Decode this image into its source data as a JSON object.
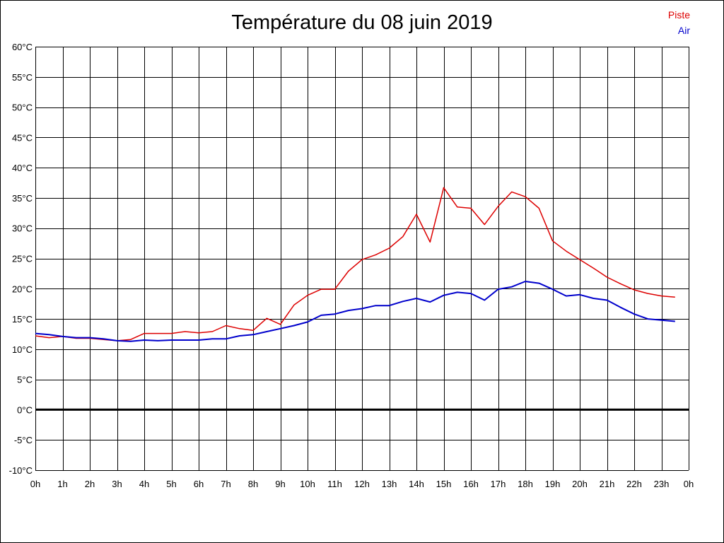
{
  "chart_data": {
    "type": "line",
    "title": "Température du 08 juin 2019",
    "xlabel": "",
    "ylabel": "",
    "x_tick_labels": [
      "0h",
      "1h",
      "2h",
      "3h",
      "4h",
      "5h",
      "6h",
      "7h",
      "8h",
      "9h",
      "10h",
      "11h",
      "12h",
      "13h",
      "14h",
      "15h",
      "16h",
      "17h",
      "18h",
      "19h",
      "20h",
      "21h",
      "22h",
      "23h",
      "0h"
    ],
    "y_tick_labels": [
      "60°C",
      "55°C",
      "50°C",
      "45°C",
      "40°C",
      "35°C",
      "30°C",
      "25°C",
      "20°C",
      "15°C",
      "10°C",
      "5°C",
      "0°C",
      "-5°C",
      "-10°C"
    ],
    "ylim": [
      -10,
      60
    ],
    "xlim": [
      0,
      24
    ],
    "grid": true,
    "legend_position": "top-right",
    "series": [
      {
        "name": "Piste",
        "color": "#dd0000",
        "x": [
          0,
          0.5,
          1,
          1.5,
          2,
          2.5,
          3,
          3.5,
          4,
          4.5,
          5,
          5.5,
          6,
          6.5,
          7,
          7.5,
          8,
          8.5,
          9,
          9.5,
          10,
          10.5,
          11,
          11.5,
          12,
          12.5,
          13,
          13.5,
          14,
          14.5,
          15,
          15.5,
          16,
          16.5,
          17,
          17.5,
          18,
          18.5,
          19,
          19.5,
          20,
          20.5,
          21,
          21.5,
          22,
          22.5,
          23,
          23.5
        ],
        "values": [
          12.2,
          11.9,
          12.1,
          11.8,
          11.8,
          11.6,
          11.4,
          11.6,
          12.6,
          12.6,
          12.6,
          12.9,
          12.7,
          12.9,
          13.9,
          13.4,
          13.1,
          15.1,
          14.1,
          17.3,
          18.9,
          19.9,
          19.9,
          22.9,
          24.8,
          25.6,
          26.7,
          28.6,
          32.3,
          27.7,
          36.7,
          33.5,
          33.3,
          30.6,
          33.6,
          36.0,
          35.2,
          33.3,
          27.9,
          26.2,
          24.8,
          23.4,
          21.9,
          20.8,
          19.8,
          19.2,
          18.8,
          18.6
        ]
      },
      {
        "name": "Air",
        "color": "#0000cc",
        "x": [
          0,
          0.5,
          1,
          1.5,
          2,
          2.5,
          3,
          3.5,
          4,
          4.5,
          5,
          5.5,
          6,
          6.5,
          7,
          7.5,
          8,
          8.5,
          9,
          9.5,
          10,
          10.5,
          11,
          11.5,
          12,
          12.5,
          13,
          13.5,
          14,
          14.5,
          15,
          15.5,
          16,
          16.5,
          17,
          17.5,
          18,
          18.5,
          19,
          19.5,
          20,
          20.5,
          21,
          21.5,
          22,
          22.5,
          23,
          23.5
        ],
        "values": [
          12.6,
          12.4,
          12.1,
          11.9,
          11.9,
          11.7,
          11.4,
          11.3,
          11.5,
          11.4,
          11.5,
          11.5,
          11.5,
          11.7,
          11.7,
          12.2,
          12.4,
          12.9,
          13.4,
          13.9,
          14.5,
          15.6,
          15.8,
          16.4,
          16.7,
          17.2,
          17.2,
          17.9,
          18.4,
          17.8,
          18.9,
          19.4,
          19.2,
          18.1,
          19.9,
          20.3,
          21.2,
          20.9,
          19.9,
          18.8,
          19.0,
          18.4,
          18.1,
          16.9,
          15.8,
          15.0,
          14.8,
          14.6
        ]
      }
    ]
  }
}
